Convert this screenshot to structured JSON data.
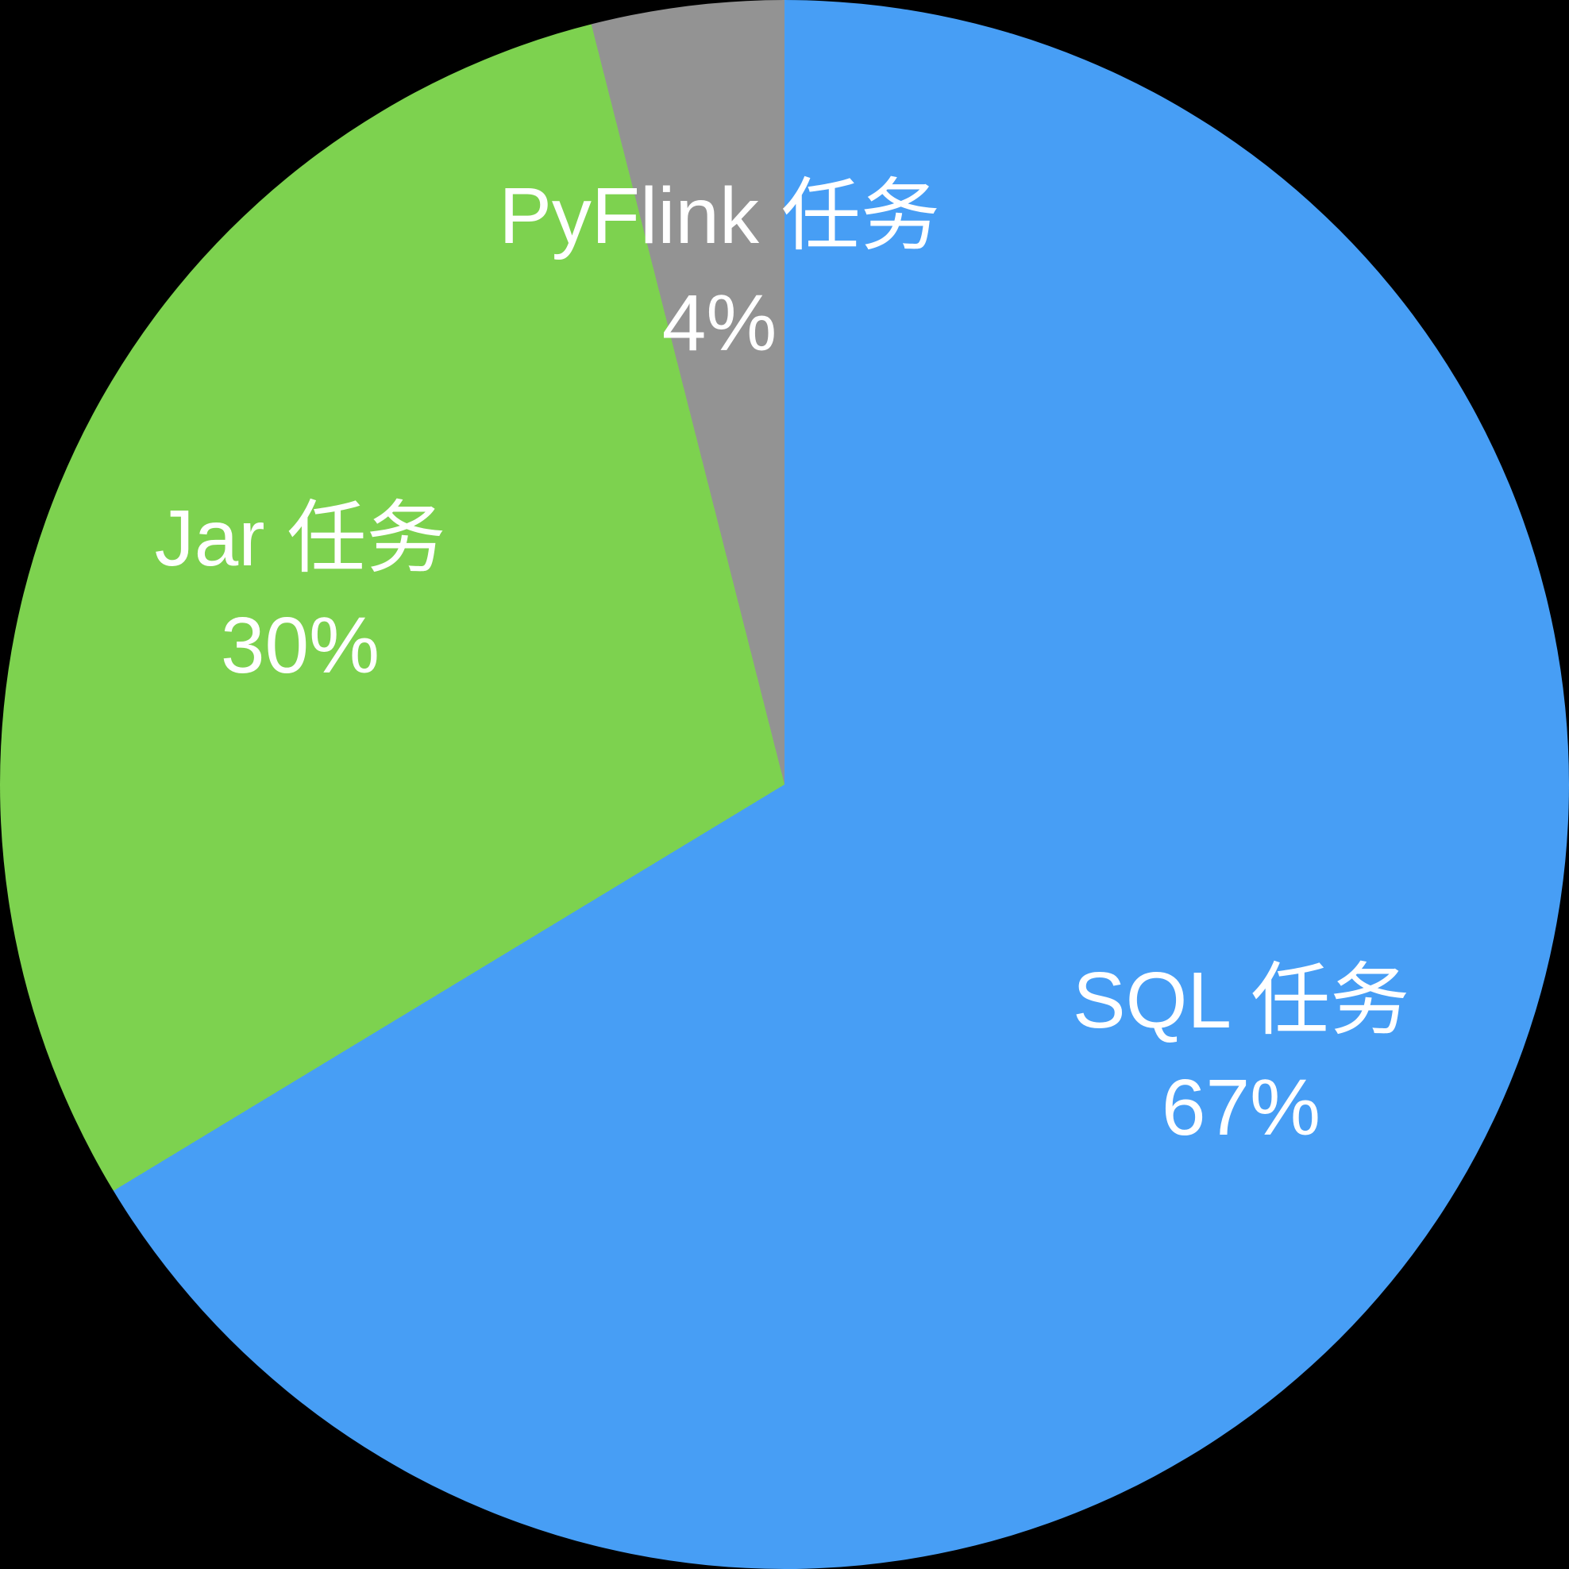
{
  "chart_data": {
    "type": "pie",
    "title": "",
    "legend": "none",
    "background_color": "#000000",
    "label_color": "#FFFFFF",
    "start_angle_deg": 0,
    "direction": "clockwise",
    "labels_on_slices": true,
    "series": [
      {
        "label": "SQL 任务",
        "value": 67,
        "display_pct": "67%",
        "color": "#479EF5"
      },
      {
        "label": "Jar 任务",
        "value": 30,
        "display_pct": "30%",
        "color": "#7DD24F"
      },
      {
        "label": "PyFlink 任务",
        "value": 4,
        "display_pct": "4%",
        "color": "#939393"
      }
    ]
  }
}
